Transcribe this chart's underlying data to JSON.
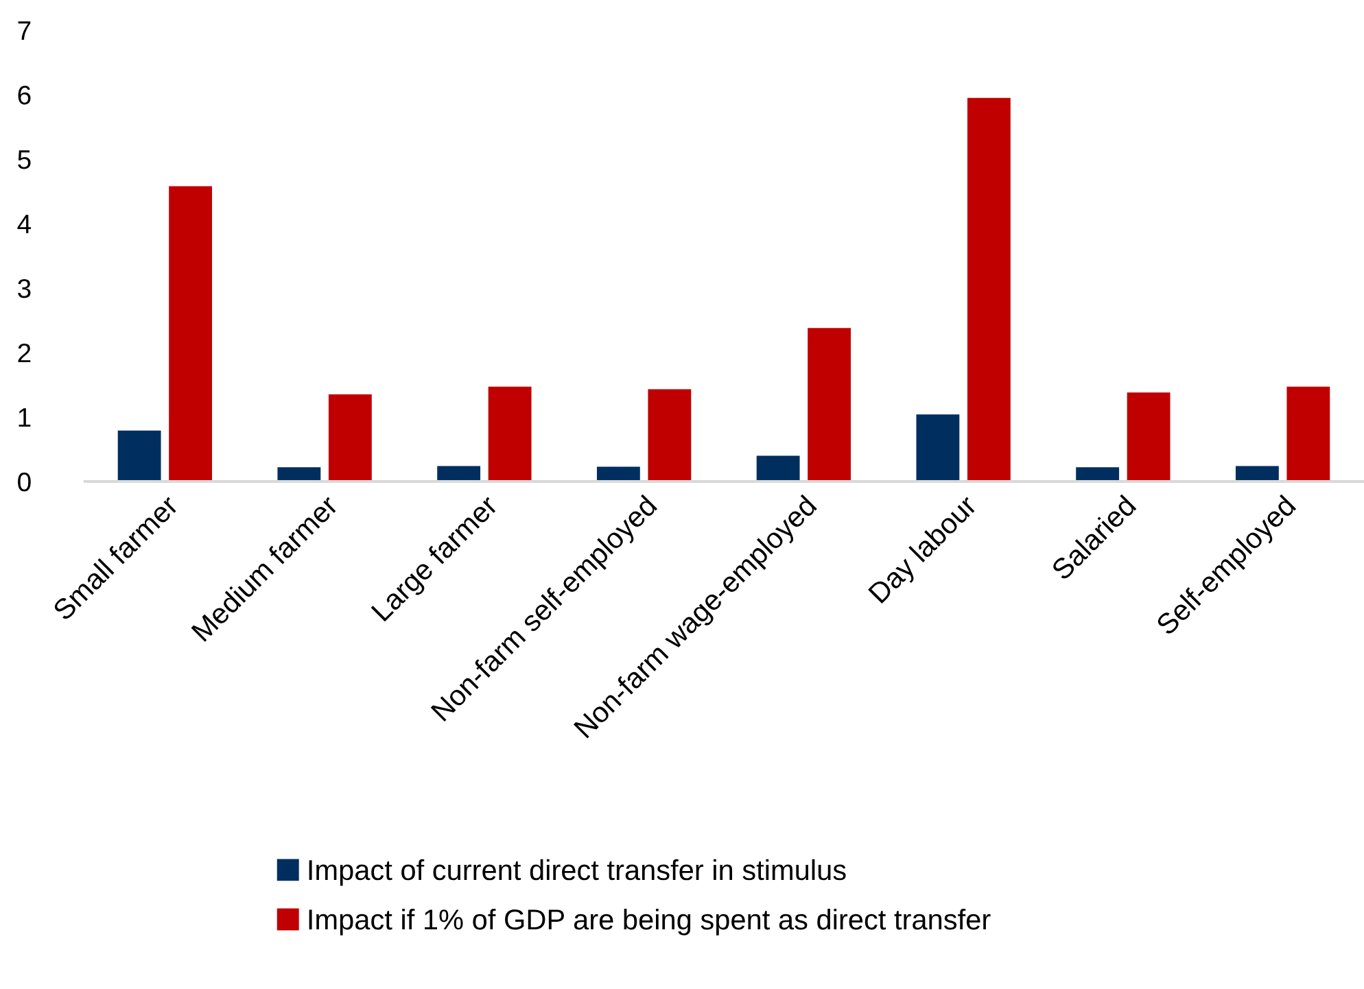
{
  "chart_data": {
    "type": "bar",
    "categories": [
      "Small farmer",
      "Medium farmer",
      "Large farmer",
      "Non-farm self-employed",
      "Non-farm wage-employed",
      "Day labour",
      "Salaried",
      "Self-employed"
    ],
    "series": [
      {
        "name": "Impact of current direct transfer in stimulus",
        "color": "#002f5f",
        "values": [
          0.79,
          0.22,
          0.24,
          0.23,
          0.4,
          1.04,
          0.22,
          0.24
        ]
      },
      {
        "name": "Impact if 1% of GDP are being spent as direct transfer",
        "color": "#c00000",
        "values": [
          4.58,
          1.35,
          1.47,
          1.43,
          2.38,
          5.95,
          1.38,
          1.47
        ]
      }
    ],
    "ylim": [
      0,
      7
    ],
    "yticks": [
      0,
      1,
      2,
      3,
      4,
      5,
      6,
      7
    ],
    "grid": false,
    "legend": "bottom"
  }
}
